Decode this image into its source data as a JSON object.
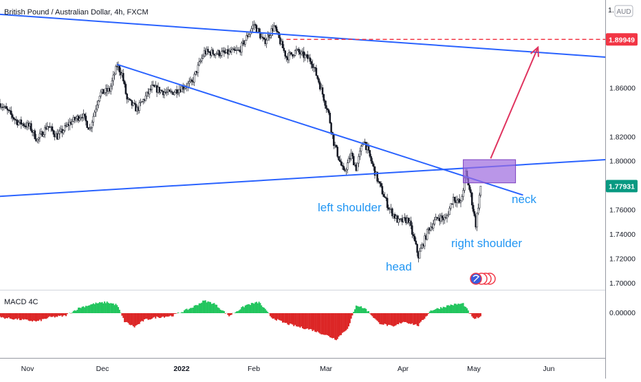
{
  "header": {
    "title": "British Pound / Australian Dollar, 4h, FXCM"
  },
  "price_axis": {
    "currency_badge": "AUD",
    "top_partial_label": "1.",
    "ticks": [
      "1.86000",
      "1.82000",
      "1.80000",
      "1.76000",
      "1.74000",
      "1.72000",
      "1.70000"
    ],
    "tick_values": [
      1.86,
      1.82,
      1.8,
      1.76,
      1.74,
      1.72,
      1.7
    ],
    "target_price": "1.89949",
    "target_value": 1.89949,
    "last_price": "1.77931",
    "last_value": 1.77931
  },
  "macd_panel": {
    "title": "MACD 4C",
    "zero_label": "0.00000"
  },
  "time_axis": {
    "labels": [
      "Nov",
      "Dec",
      "2022",
      "Feb",
      "Mar",
      "Apr",
      "May",
      "Jun"
    ]
  },
  "annotations": {
    "left_shoulder": "left shoulder",
    "head": "head",
    "right_shoulder": "right shoulder",
    "neck": "neck"
  },
  "colors": {
    "up": "#089981",
    "down": "#f23645",
    "trendline": "#2962ff",
    "target_line": "#f23645",
    "arrow": "#e0345f",
    "box_fill": "#9c6ade",
    "label_text": "#2196f3",
    "macd_up": "#22c55e",
    "macd_down": "#dc2626"
  },
  "chart_data": {
    "type": "candlestick",
    "symbol": "GBPAUD",
    "timeframe": "4h",
    "x_range": [
      "2021-10-20",
      "2022-06-20"
    ],
    "ylim": [
      1.695,
      1.925
    ],
    "price_path": [
      [
        "2021-10-20",
        1.847
      ],
      [
        "2021-10-27",
        1.832
      ],
      [
        "2021-11-01",
        1.828
      ],
      [
        "2021-11-04",
        1.817
      ],
      [
        "2021-11-08",
        1.829
      ],
      [
        "2021-11-12",
        1.82
      ],
      [
        "2021-11-17",
        1.831
      ],
      [
        "2021-11-22",
        1.838
      ],
      [
        "2021-11-25",
        1.826
      ],
      [
        "2021-11-29",
        1.855
      ],
      [
        "2021-12-03",
        1.858
      ],
      [
        "2021-12-06",
        1.878
      ],
      [
        "2021-12-08",
        1.871
      ],
      [
        "2021-12-10",
        1.85
      ],
      [
        "2021-12-14",
        1.842
      ],
      [
        "2021-12-20",
        1.86
      ],
      [
        "2021-12-27",
        1.855
      ],
      [
        "2022-01-05",
        1.864
      ],
      [
        "2022-01-10",
        1.889
      ],
      [
        "2022-01-18",
        1.888
      ],
      [
        "2022-01-24",
        1.89
      ],
      [
        "2022-01-30",
        1.912
      ],
      [
        "2022-02-03",
        1.897
      ],
      [
        "2022-02-07",
        1.91
      ],
      [
        "2022-02-12",
        1.885
      ],
      [
        "2022-02-16",
        1.89
      ],
      [
        "2022-02-22",
        1.882
      ],
      [
        "2022-02-25",
        1.865
      ],
      [
        "2022-03-01",
        1.838
      ],
      [
        "2022-03-03",
        1.815
      ],
      [
        "2022-03-07",
        1.79
      ],
      [
        "2022-03-10",
        1.805
      ],
      [
        "2022-03-12",
        1.794
      ],
      [
        "2022-03-15",
        1.818
      ],
      [
        "2022-03-18",
        1.8
      ],
      [
        "2022-03-21",
        1.782
      ],
      [
        "2022-03-25",
        1.762
      ],
      [
        "2022-03-29",
        1.75
      ],
      [
        "2022-04-02",
        1.752
      ],
      [
        "2022-04-06",
        1.722
      ],
      [
        "2022-04-10",
        1.744
      ],
      [
        "2022-04-14",
        1.754
      ],
      [
        "2022-04-17",
        1.752
      ],
      [
        "2022-04-20",
        1.77
      ],
      [
        "2022-04-23",
        1.765
      ],
      [
        "2022-04-25",
        1.79
      ],
      [
        "2022-04-27",
        1.772
      ],
      [
        "2022-04-29",
        1.748
      ],
      [
        "2022-05-01",
        1.779
      ]
    ],
    "macd_hist": [
      [
        "2021-10-20",
        -3
      ],
      [
        "2021-10-30",
        -5
      ],
      [
        "2021-11-04",
        -6
      ],
      [
        "2021-11-09",
        -3
      ],
      [
        "2021-11-15",
        -2
      ],
      [
        "2021-11-21",
        4
      ],
      [
        "2021-11-27",
        7
      ],
      [
        "2021-12-02",
        8
      ],
      [
        "2021-12-06",
        6
      ],
      [
        "2021-12-09",
        -6
      ],
      [
        "2021-12-13",
        -10
      ],
      [
        "2021-12-17",
        -5
      ],
      [
        "2021-12-22",
        -3
      ],
      [
        "2021-12-28",
        -2
      ],
      [
        "2022-01-05",
        4
      ],
      [
        "2022-01-10",
        9
      ],
      [
        "2022-01-14",
        7
      ],
      [
        "2022-01-20",
        -2
      ],
      [
        "2022-01-27",
        6
      ],
      [
        "2022-02-01",
        8
      ],
      [
        "2022-02-06",
        -3
      ],
      [
        "2022-02-11",
        -7
      ],
      [
        "2022-02-17",
        -10
      ],
      [
        "2022-02-22",
        -12
      ],
      [
        "2022-02-28",
        -16
      ],
      [
        "2022-03-04",
        -19
      ],
      [
        "2022-03-09",
        -10
      ],
      [
        "2022-03-12",
        6
      ],
      [
        "2022-03-16",
        3
      ],
      [
        "2022-03-21",
        -7
      ],
      [
        "2022-03-27",
        -10
      ],
      [
        "2022-03-31",
        -6
      ],
      [
        "2022-04-06",
        -9
      ],
      [
        "2022-04-11",
        2
      ],
      [
        "2022-04-15",
        4
      ],
      [
        "2022-04-19",
        6
      ],
      [
        "2022-04-24",
        7
      ],
      [
        "2022-04-28",
        -4
      ],
      [
        "2022-05-01",
        -3
      ]
    ],
    "trendlines": [
      {
        "from": [
          "2021-10-20",
          1.92
        ],
        "to": [
          "2022-06-20",
          1.885
        ]
      },
      {
        "from": [
          "2021-12-06",
          1.879
        ],
        "to": [
          "2022-05-18",
          1.772
        ]
      },
      {
        "from": [
          "2021-10-20",
          1.771
        ],
        "to": [
          "2022-06-20",
          1.801
        ]
      }
    ],
    "target_level": {
      "value": 1.89949,
      "from": "2022-02-12",
      "to": "2022-06-20"
    },
    "projection_box": {
      "from": [
        "2022-04-24",
        1.801
      ],
      "to": [
        "2022-05-15",
        1.782
      ]
    },
    "projection_arrow": {
      "from": [
        "2022-05-05",
        1.802
      ],
      "to": [
        "2022-05-24",
        1.893
      ]
    },
    "xlabel": "",
    "ylabel": "",
    "grid": false
  }
}
